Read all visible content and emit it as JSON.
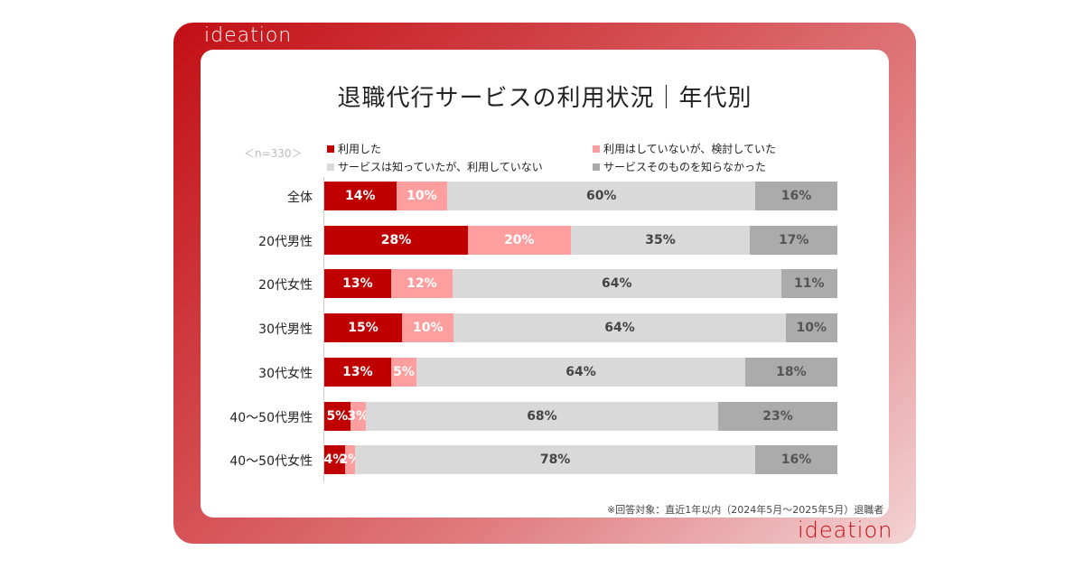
{
  "brand": {
    "logo_text": "ideation"
  },
  "footnote": "※回答対象：直近1年以内（2024年5月～2025年5月）退職者",
  "chart_data": {
    "type": "bar",
    "orientation": "horizontal-stacked-100",
    "title": "退職代行サービスの利用状況｜年代別",
    "sample_size": "＜n=330＞",
    "categories": [
      "全体",
      "20代男性",
      "20代女性",
      "30代男性",
      "30代女性",
      "40～50代男性",
      "40～50代女性"
    ],
    "series": [
      {
        "name": "利用した",
        "color": "#c00000",
        "label_color": "#ffffff",
        "values": [
          14,
          28,
          13,
          15,
          13,
          5,
          4
        ]
      },
      {
        "name": "利用はしていないが、検討していた",
        "color": "#ff9e9e",
        "label_color": "#ffffff",
        "values": [
          10,
          20,
          12,
          10,
          5,
          3,
          2
        ]
      },
      {
        "name": "サービスは知っていたが、利用していない",
        "color": "#d9d9d9",
        "label_color": "#444444",
        "values": [
          60,
          35,
          64,
          64,
          64,
          68,
          78
        ]
      },
      {
        "name": "サービスそのものを知らなかった",
        "color": "#ababab",
        "label_color": "#555555",
        "values": [
          16,
          17,
          11,
          10,
          18,
          23,
          16
        ]
      }
    ],
    "value_suffix": "%",
    "xlim": [
      0,
      100
    ],
    "legend_position": "top",
    "grid": false
  }
}
